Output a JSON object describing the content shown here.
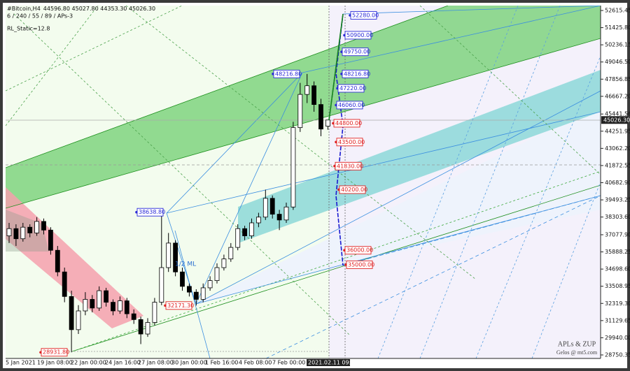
{
  "chart_data": {
    "type": "candlestick",
    "title": "#Bitcoin,H4",
    "ohlc_text": "44596.80 45027.80 44353.30 45026.30",
    "subtitle": "6 / 240 / 55 / 89 / APs-3",
    "indicator_text": "RL_Static=12.8",
    "annotations": [
      "1/2 ML",
      "APLs & ZUP",
      "Gelos @ mt5.com"
    ],
    "ylim": [
      28508,
      52954
    ],
    "yticks": [
      {
        "value": 52615.45,
        "label": "52615.45"
      },
      {
        "value": 51425.8,
        "label": "51425.80"
      },
      {
        "value": 50236.15,
        "label": "50236.15"
      },
      {
        "value": 49046.5,
        "label": "49046.50"
      },
      {
        "value": 47856.85,
        "label": "47856.85"
      },
      {
        "value": 46667.2,
        "label": "46667.20"
      },
      {
        "value": 45441.56,
        "label": "45441.56"
      },
      {
        "value": 44251.95,
        "label": "44251.95"
      },
      {
        "value": 43062.2,
        "label": "43062.20"
      },
      {
        "value": 41872.55,
        "label": "41872.55"
      },
      {
        "value": 40682.9,
        "label": "40682.90"
      },
      {
        "value": 39493.25,
        "label": "39493.25"
      },
      {
        "value": 38303.6,
        "label": "38303.60"
      },
      {
        "value": 37077.9,
        "label": "37077.90"
      },
      {
        "value": 35888.25,
        "label": "35888.25"
      },
      {
        "value": 34698.6,
        "label": "34698.60"
      },
      {
        "value": 33508.95,
        "label": "33508.95"
      },
      {
        "value": 32319.3,
        "label": "32319.30"
      },
      {
        "value": 31129.65,
        "label": "31129.65"
      },
      {
        "value": 29940,
        "label": "29940.00"
      },
      {
        "value": 28750.35,
        "label": "28750.35"
      }
    ],
    "last_price": {
      "value": 45026.3,
      "label": "45026.30"
    },
    "x_labels": [
      "5 Jan 2021",
      "19 Jan 08:00",
      "22 Jan 00:00",
      "24 Jan 16:00",
      "27 Jan 08:00",
      "30 Jan 00:00",
      "1 Feb 16:00",
      "4 Feb 08:00",
      "7 Feb 00:00",
      "2021.02.11 09:10"
    ],
    "bull_color": "#ffffff",
    "bear_color": "#000000",
    "candles": [
      {
        "open": 37000,
        "high": 37900,
        "low": 36500,
        "close": 37500
      },
      {
        "open": 37500,
        "high": 37800,
        "low": 36300,
        "close": 36800
      },
      {
        "open": 36800,
        "high": 37900,
        "low": 36600,
        "close": 37600
      },
      {
        "open": 37600,
        "high": 37800,
        "low": 36900,
        "close": 37200
      },
      {
        "open": 37200,
        "high": 38300,
        "low": 37000,
        "close": 38000
      },
      {
        "open": 38000,
        "high": 38200,
        "low": 37100,
        "close": 37400
      },
      {
        "open": 37400,
        "high": 37600,
        "low": 35700,
        "close": 36000
      },
      {
        "open": 36000,
        "high": 36300,
        "low": 34200,
        "close": 34500
      },
      {
        "open": 34500,
        "high": 34800,
        "low": 32400,
        "close": 32800
      },
      {
        "open": 32800,
        "high": 33200,
        "low": 28931.8,
        "close": 30500
      },
      {
        "open": 30500,
        "high": 32200,
        "low": 30200,
        "close": 31800
      },
      {
        "open": 31800,
        "high": 33100,
        "low": 31500,
        "close": 32600
      },
      {
        "open": 32600,
        "high": 32900,
        "low": 31700,
        "close": 32000
      },
      {
        "open": 32000,
        "high": 33500,
        "low": 31800,
        "close": 33200
      },
      {
        "open": 33200,
        "high": 33400,
        "low": 32100,
        "close": 32400
      },
      {
        "open": 32400,
        "high": 32600,
        "low": 31500,
        "close": 31800
      },
      {
        "open": 31800,
        "high": 32800,
        "low": 31600,
        "close": 32500
      },
      {
        "open": 32500,
        "high": 32700,
        "low": 31300,
        "close": 31600
      },
      {
        "open": 31600,
        "high": 31900,
        "low": 30900,
        "close": 31200
      },
      {
        "open": 31200,
        "high": 31400,
        "low": 29500,
        "close": 30200
      },
      {
        "open": 30200,
        "high": 31300,
        "low": 30000,
        "close": 31000
      },
      {
        "open": 31000,
        "high": 32700,
        "low": 30800,
        "close": 32400
      },
      {
        "open": 32400,
        "high": 38638.8,
        "low": 32200,
        "close": 34800
      },
      {
        "open": 34800,
        "high": 37200,
        "low": 34500,
        "close": 36500
      },
      {
        "open": 36500,
        "high": 36700,
        "low": 34200,
        "close": 34500
      },
      {
        "open": 34500,
        "high": 34800,
        "low": 33200,
        "close": 33500
      },
      {
        "open": 33500,
        "high": 33700,
        "low": 32800,
        "close": 33100
      },
      {
        "open": 33100,
        "high": 33300,
        "low": 32171.3,
        "close": 32600
      },
      {
        "open": 32600,
        "high": 33700,
        "low": 32400,
        "close": 33400
      },
      {
        "open": 33400,
        "high": 34200,
        "low": 33200,
        "close": 33900
      },
      {
        "open": 33900,
        "high": 35100,
        "low": 33700,
        "close": 34800
      },
      {
        "open": 34800,
        "high": 35700,
        "low": 34600,
        "close": 35400
      },
      {
        "open": 35400,
        "high": 36500,
        "low": 35200,
        "close": 36200
      },
      {
        "open": 36200,
        "high": 37800,
        "low": 36000,
        "close": 37500
      },
      {
        "open": 37500,
        "high": 37700,
        "low": 36700,
        "close": 37000
      },
      {
        "open": 37000,
        "high": 38200,
        "low": 36800,
        "close": 37900
      },
      {
        "open": 37900,
        "high": 38600,
        "low": 37600,
        "close": 38300
      },
      {
        "open": 38300,
        "high": 40200,
        "low": 38100,
        "close": 39600
      },
      {
        "open": 39600,
        "high": 39800,
        "low": 38200,
        "close": 38500
      },
      {
        "open": 38500,
        "high": 38800,
        "low": 37400,
        "close": 38100
      },
      {
        "open": 38100,
        "high": 39300,
        "low": 37900,
        "close": 39000
      },
      {
        "open": 39000,
        "high": 44900,
        "low": 38800,
        "close": 44500
      },
      {
        "open": 44500,
        "high": 47600,
        "low": 44200,
        "close": 46800
      },
      {
        "open": 46800,
        "high": 48216.8,
        "low": 46200,
        "close": 47400
      },
      {
        "open": 47400,
        "high": 47700,
        "low": 45600,
        "close": 46100
      },
      {
        "open": 46100,
        "high": 46500,
        "low": 43900,
        "close": 44400
      },
      {
        "open": 44596.8,
        "high": 45027.8,
        "low": 44353.3,
        "close": 45026.3
      }
    ],
    "levels": [
      {
        "value": 52280,
        "label": "52280.00",
        "color": "#2b2bd8"
      },
      {
        "value": 50900,
        "label": "50900.00",
        "color": "#2b2bd8"
      },
      {
        "value": 49750,
        "label": "49750.00",
        "color": "#2b2bd8"
      },
      {
        "value": 48216.8,
        "label": "48216.80",
        "color": "#2b2bd8"
      },
      {
        "value": 48216.8,
        "label": "48216.80",
        "color": "#2b2bd8"
      },
      {
        "value": 47220,
        "label": "47220.00",
        "color": "#2b2bd8"
      },
      {
        "value": 46060,
        "label": "46060.00",
        "color": "#2b2bd8"
      },
      {
        "value": 44800,
        "label": "44800.00",
        "color": "#e02020"
      },
      {
        "value": 43500,
        "label": "43500.00",
        "color": "#e02020"
      },
      {
        "value": 41830,
        "label": "41830.00",
        "color": "#e02020"
      },
      {
        "value": 40200,
        "label": "40200.00",
        "color": "#e02020"
      },
      {
        "value": 38638.8,
        "label": "38638.80",
        "color": "#2b2bd8"
      },
      {
        "value": 36000,
        "label": "36000.00",
        "color": "#e02020"
      },
      {
        "value": 35000,
        "label": "35000.00",
        "color": "#e02020"
      },
      {
        "value": 32171.3,
        "label": "32171.30",
        "color": "#e02020"
      },
      {
        "value": 28931.8,
        "label": "28931.80",
        "color": "#e02020"
      }
    ]
  }
}
